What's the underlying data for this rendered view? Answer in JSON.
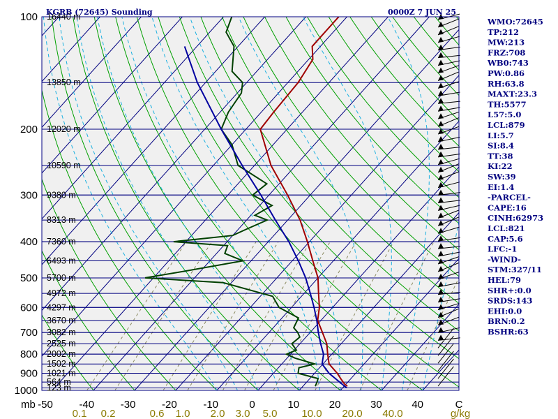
{
  "chart_data": {
    "type": "line",
    "title": "KGRB (72645) Sounding",
    "time_label": "0000Z  7 JUN 25",
    "pressure_levels": [
      100,
      200,
      300,
      400,
      500,
      600,
      700,
      800,
      900,
      1000
    ],
    "pressure_unit": "mb",
    "height_labels": [
      {
        "p": 100,
        "label": "16440 m"
      },
      {
        "p": 150,
        "label": "13850 m"
      },
      {
        "p": 200,
        "label": "12020 m"
      },
      {
        "p": 250,
        "label": "10590 m"
      },
      {
        "p": 300,
        "label": "9380 m"
      },
      {
        "p": 350,
        "label": "8313 m"
      },
      {
        "p": 400,
        "label": "7360 m"
      },
      {
        "p": 450,
        "label": "6493 m"
      },
      {
        "p": 500,
        "label": "5700 m"
      },
      {
        "p": 550,
        "label": "4972 m"
      },
      {
        "p": 600,
        "label": "4297 m"
      },
      {
        "p": 650,
        "label": "3670 m"
      },
      {
        "p": 700,
        "label": "3082 m"
      },
      {
        "p": 750,
        "label": "2525 m"
      },
      {
        "p": 800,
        "label": "2002 m"
      },
      {
        "p": 850,
        "label": "1502 m"
      },
      {
        "p": 900,
        "label": "1021 m"
      },
      {
        "p": 950,
        "label": "564 m"
      },
      {
        "p": 985,
        "label": "123 m"
      }
    ],
    "temperature_ticks": [
      "-50",
      "-40",
      "-30",
      "-20",
      "-10",
      "0",
      "10",
      "20",
      "30",
      "40",
      "C"
    ],
    "mixing_ratio_ticks": [
      "0.1",
      "0.2",
      "0.6",
      "1.0",
      "2.0",
      "3.0",
      "5.0",
      "10.0",
      "20.0",
      "40.0",
      "g/kg"
    ],
    "temperature_profile": [
      {
        "p": 975,
        "t": 20.8
      },
      {
        "p": 960,
        "t": 19.5
      },
      {
        "p": 930,
        "t": 17.5
      },
      {
        "p": 900,
        "t": 15.5
      },
      {
        "p": 850,
        "t": 11.5
      },
      {
        "p": 800,
        "t": 9
      },
      {
        "p": 750,
        "t": 6.5
      },
      {
        "p": 700,
        "t": 3
      },
      {
        "p": 650,
        "t": -0.8
      },
      {
        "p": 600,
        "t": -3.2
      },
      {
        "p": 550,
        "t": -6.5
      },
      {
        "p": 500,
        "t": -10
      },
      {
        "p": 450,
        "t": -15
      },
      {
        "p": 400,
        "t": -20.5
      },
      {
        "p": 350,
        "t": -27
      },
      {
        "p": 300,
        "t": -35.5
      },
      {
        "p": 250,
        "t": -46
      },
      {
        "p": 200,
        "t": -56.5
      },
      {
        "p": 180,
        "t": -57
      },
      {
        "p": 150,
        "t": -57.5
      },
      {
        "p": 130,
        "t": -59
      },
      {
        "p": 120,
        "t": -62
      },
      {
        "p": 110,
        "t": -62
      },
      {
        "p": 100,
        "t": -62
      }
    ],
    "dewpoint_profile": [
      {
        "p": 975,
        "td": 13
      },
      {
        "p": 950,
        "td": 12.5
      },
      {
        "p": 930,
        "td": 12
      },
      {
        "p": 900,
        "td": 6
      },
      {
        "p": 870,
        "td": 5
      },
      {
        "p": 850,
        "td": 8
      },
      {
        "p": 820,
        "td": 2
      },
      {
        "p": 800,
        "td": -1
      },
      {
        "p": 780,
        "td": 0.5
      },
      {
        "p": 750,
        "td": -2
      },
      {
        "p": 720,
        "td": -1.5
      },
      {
        "p": 700,
        "td": -3
      },
      {
        "p": 680,
        "td": -5
      },
      {
        "p": 640,
        "td": -6
      },
      {
        "p": 600,
        "td": -13
      },
      {
        "p": 560,
        "td": -17
      },
      {
        "p": 515,
        "td": -32
      },
      {
        "p": 500,
        "td": -52
      },
      {
        "p": 480,
        "td": -44
      },
      {
        "p": 450,
        "td": -32
      },
      {
        "p": 430,
        "td": -38
      },
      {
        "p": 410,
        "td": -39
      },
      {
        "p": 400,
        "td": -53
      },
      {
        "p": 385,
        "td": -40
      },
      {
        "p": 370,
        "td": -38
      },
      {
        "p": 350,
        "td": -35
      },
      {
        "p": 340,
        "td": -39
      },
      {
        "p": 320,
        "td": -37
      },
      {
        "p": 300,
        "td": -44
      },
      {
        "p": 280,
        "td": -43
      },
      {
        "p": 250,
        "td": -54
      },
      {
        "p": 220,
        "td": -60
      },
      {
        "p": 200,
        "td": -66
      },
      {
        "p": 180,
        "td": -68
      },
      {
        "p": 160,
        "td": -69
      },
      {
        "p": 150,
        "td": -71
      },
      {
        "p": 140,
        "td": -76
      },
      {
        "p": 120,
        "td": -81
      },
      {
        "p": 110,
        "td": -86
      },
      {
        "p": 100,
        "td": -88
      }
    ],
    "parcel_profile": [
      {
        "p": 985,
        "t": 21
      },
      {
        "p": 950,
        "t": 18
      },
      {
        "p": 900,
        "t": 13.5
      },
      {
        "p": 850,
        "t": 9.8
      },
      {
        "p": 800,
        "t": 8
      },
      {
        "p": 750,
        "t": 5
      },
      {
        "p": 700,
        "t": 2
      },
      {
        "p": 650,
        "t": -1
      },
      {
        "p": 600,
        "t": -4.5
      },
      {
        "p": 550,
        "t": -8.5
      },
      {
        "p": 500,
        "t": -13
      },
      {
        "p": 450,
        "t": -18.5
      },
      {
        "p": 400,
        "t": -25
      },
      {
        "p": 350,
        "t": -33
      },
      {
        "p": 300,
        "t": -42
      },
      {
        "p": 250,
        "t": -53
      },
      {
        "p": 200,
        "t": -66
      },
      {
        "p": 150,
        "t": -82
      },
      {
        "p": 120,
        "t": -93
      }
    ],
    "annotations": [
      "WMO:72645",
      "TP:212",
      "MW:213",
      "FRZ:708",
      "WB0:743",
      "PW:0.86",
      "RH:63.8",
      "MAXT:23.3",
      "TH:5577",
      "L57:5.0",
      "LCL:879",
      "LI:5.7",
      "SI:8.4",
      "TT:38",
      "KI:22",
      "SW:39",
      "EI:1.4",
      "-PARCEL-",
      "CAPE:16",
      "CINH:62973",
      "LCL:821",
      "CAP:5.6",
      "LFC:-1",
      "-WIND-",
      "STM:327/11",
      "HEL:79",
      "SHR+:0.0",
      "SRDS:143",
      "EHI:0.0",
      "BRN:0.2",
      "BSHR:63"
    ],
    "series": [
      {
        "name": "",
        "color": "#a00000"
      },
      {
        "name": "",
        "color": "#004000"
      },
      {
        "name": "",
        "color": "#0000a0"
      }
    ],
    "colors": {
      "isobar": "#000080",
      "isotherm": "#000080",
      "dry_adiabat": "#00a000",
      "moist_adiabat": "#1ab0e0",
      "mixing_ratio": "#8a8a60",
      "temperature": "#a00000",
      "dewpoint": "#004000",
      "parcel": "#0000a0",
      "wind_barb": "#000000"
    },
    "wind_barbs": "count-only",
    "wind_barb_count": 49
  }
}
